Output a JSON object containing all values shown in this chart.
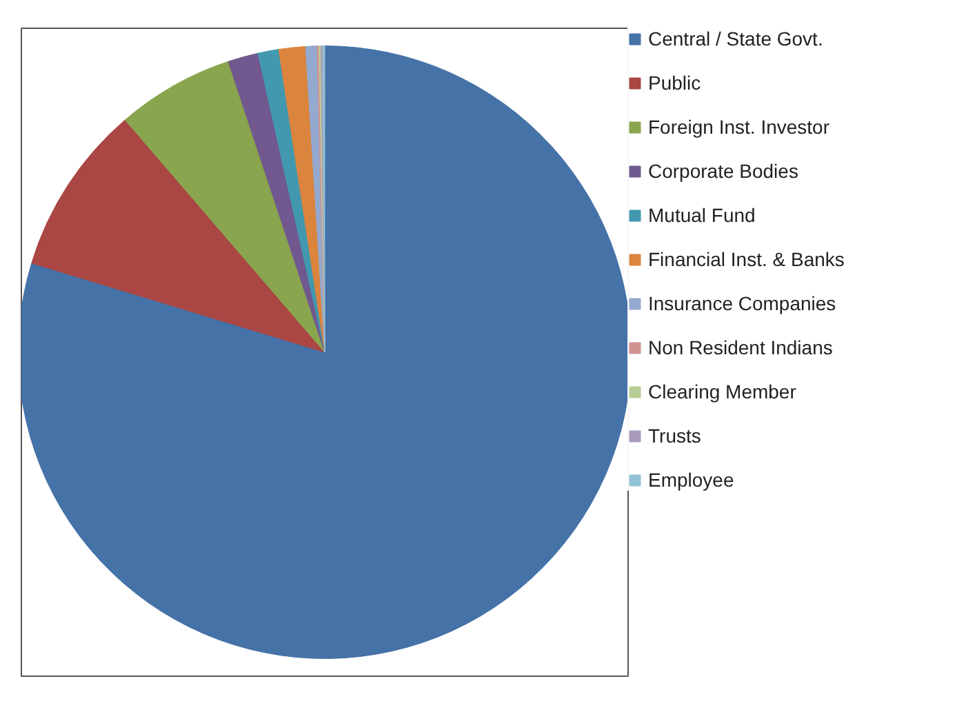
{
  "chart_data": {
    "type": "pie",
    "categories": [
      "Central / State Govt.",
      "Public",
      "Foreign Inst. Investor",
      "Corporate Bodies",
      "Mutual Fund",
      "Financial Inst. & Banks",
      "Insurance Companies",
      "Non Resident Indians",
      "Clearing Member",
      "Trusts",
      "Employee"
    ],
    "values": [
      79.7,
      9.0,
      6.2,
      1.6,
      1.1,
      1.4,
      0.6,
      0.1,
      0.1,
      0.1,
      0.1
    ],
    "colors": [
      "#4572a7",
      "#aa4643",
      "#89a54e",
      "#71588f",
      "#4198af",
      "#db843d",
      "#93a9cf",
      "#d19392",
      "#b9cd96",
      "#a99bbd",
      "#92c3d5"
    ],
    "legend": "right"
  }
}
